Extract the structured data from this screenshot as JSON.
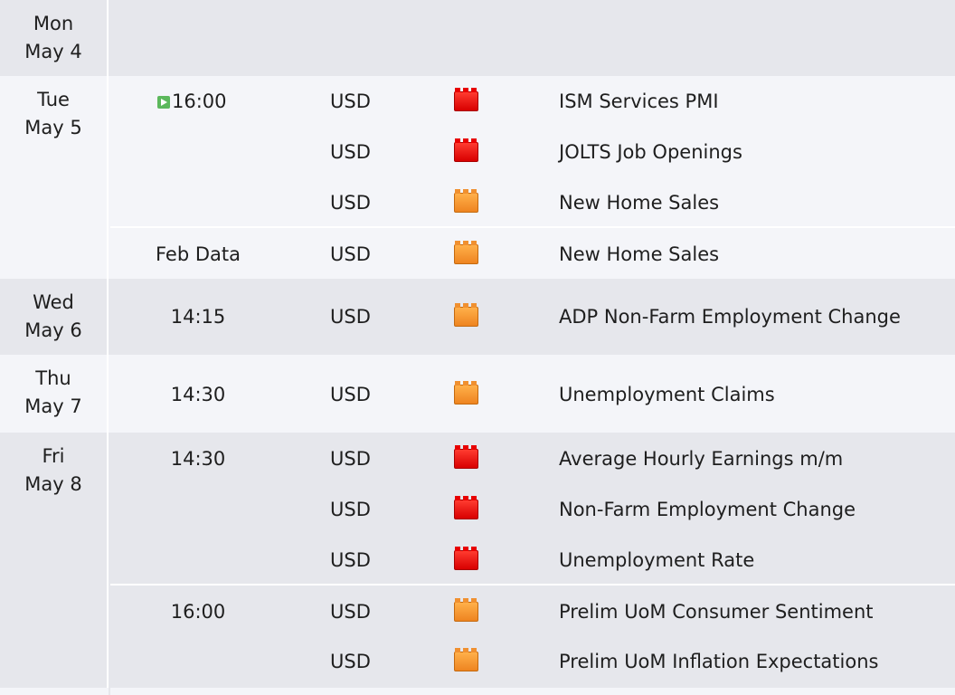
{
  "days": [
    {
      "weekday": "Mon",
      "date": "May 4",
      "events": []
    },
    {
      "weekday": "Tue",
      "date": "May 5",
      "events": [
        {
          "time": "16:00",
          "up_next": true,
          "currency": "USD",
          "impact": "high",
          "impact_icon": "red-folder-icon",
          "title": "ISM Services PMI"
        },
        {
          "time": "",
          "currency": "USD",
          "impact": "high",
          "impact_icon": "red-folder-icon",
          "title": "JOLTS Job Openings"
        },
        {
          "time": "",
          "currency": "USD",
          "impact": "medium",
          "impact_icon": "orange-folder-icon",
          "title": "New Home Sales"
        },
        {
          "time": "Feb Data",
          "currency": "USD",
          "impact": "medium",
          "impact_icon": "orange-folder-icon",
          "title": "New Home Sales"
        }
      ]
    },
    {
      "weekday": "Wed",
      "date": "May 6",
      "events": [
        {
          "time": "14:15",
          "currency": "USD",
          "impact": "medium",
          "impact_icon": "orange-folder-icon",
          "title": "ADP Non-Farm Employment Change"
        }
      ]
    },
    {
      "weekday": "Thu",
      "date": "May 7",
      "events": [
        {
          "time": "14:30",
          "currency": "USD",
          "impact": "medium",
          "impact_icon": "orange-folder-icon",
          "title": "Unemployment Claims"
        }
      ]
    },
    {
      "weekday": "Fri",
      "date": "May 8",
      "events": [
        {
          "time": "14:30",
          "currency": "USD",
          "impact": "high",
          "impact_icon": "red-folder-icon",
          "title": "Average Hourly Earnings m/m"
        },
        {
          "time": "",
          "currency": "USD",
          "impact": "high",
          "impact_icon": "red-folder-icon",
          "title": "Non-Farm Employment Change"
        },
        {
          "time": "",
          "currency": "USD",
          "impact": "high",
          "impact_icon": "red-folder-icon",
          "title": "Unemployment Rate"
        },
        {
          "time": "16:00",
          "currency": "USD",
          "impact": "medium",
          "impact_icon": "orange-folder-icon",
          "title": "Prelim UoM Consumer Sentiment"
        },
        {
          "time": "",
          "currency": "USD",
          "impact": "medium",
          "impact_icon": "orange-folder-icon",
          "title": "Prelim UoM Inflation Expectations"
        }
      ]
    }
  ],
  "colors": {
    "high_impact": "#e80000",
    "medium_impact": "#f09030",
    "row_gray": "#e6e7ec",
    "row_light": "#f4f5f9"
  }
}
